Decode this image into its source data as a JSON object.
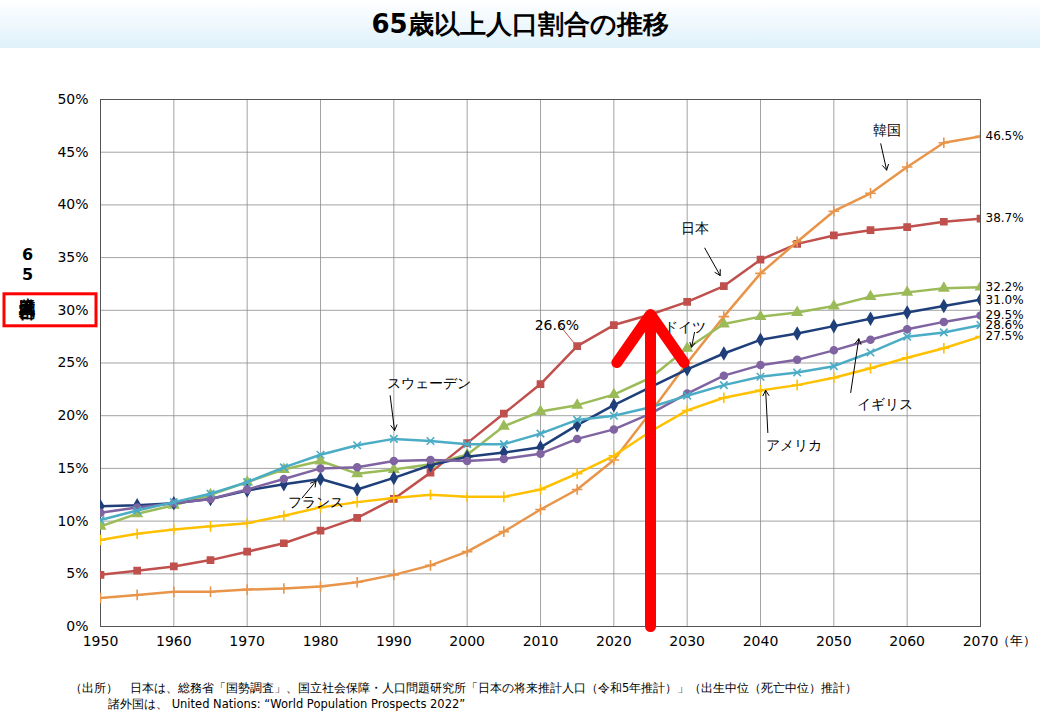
{
  "chart_data": {
    "type": "line",
    "title": "65歳以上人口割合の推移",
    "y_label": "65歳以上人口割合",
    "x_label": "（年）",
    "x": [
      1950,
      1955,
      1960,
      1965,
      1970,
      1975,
      1980,
      1985,
      1990,
      1995,
      2000,
      2005,
      2010,
      2015,
      2020,
      2025,
      2030,
      2035,
      2040,
      2045,
      2050,
      2055,
      2060,
      2065,
      2070
    ],
    "series": [
      {
        "name": "日本",
        "color": "#c0504d",
        "marker": "square",
        "values": [
          4.9,
          5.3,
          5.7,
          6.3,
          7.1,
          7.9,
          9.1,
          10.3,
          12.1,
          14.6,
          17.4,
          20.2,
          23.0,
          26.6,
          28.6,
          29.6,
          30.8,
          32.3,
          34.8,
          36.3,
          37.1,
          37.6,
          37.9,
          38.4,
          38.7
        ],
        "value_labels": [
          null,
          null,
          null,
          null,
          null,
          null,
          null,
          null,
          null,
          null,
          null,
          null,
          null,
          null,
          null,
          null,
          null,
          null,
          null,
          null,
          null,
          null,
          null,
          null,
          "38.7%"
        ]
      },
      {
        "name": "韓国",
        "color": "#e8954a",
        "marker": "plus",
        "values": [
          2.7,
          3.0,
          3.3,
          3.3,
          3.5,
          3.6,
          3.8,
          4.2,
          4.9,
          5.8,
          7.1,
          9.0,
          11.1,
          13.0,
          15.8,
          20.3,
          25.0,
          29.4,
          33.5,
          36.5,
          39.4,
          41.1,
          43.6,
          45.9,
          46.5
        ],
        "value_labels": [
          null,
          null,
          null,
          null,
          null,
          null,
          null,
          null,
          null,
          null,
          null,
          null,
          null,
          null,
          null,
          null,
          null,
          null,
          null,
          null,
          null,
          null,
          null,
          null,
          "46.5%"
        ]
      },
      {
        "name": "ドイツ",
        "color": "#9bbb59",
        "marker": "triangle",
        "values": [
          9.5,
          10.7,
          11.5,
          12.5,
          13.7,
          14.9,
          15.7,
          14.5,
          14.9,
          15.4,
          16.3,
          19.0,
          20.4,
          21.0,
          22.0,
          23.6,
          26.4,
          28.7,
          29.4,
          29.8,
          30.4,
          31.3,
          31.7,
          32.1,
          32.2
        ],
        "value_labels": [
          null,
          null,
          null,
          null,
          null,
          null,
          null,
          null,
          null,
          null,
          null,
          null,
          null,
          null,
          null,
          null,
          null,
          null,
          null,
          null,
          null,
          null,
          null,
          null,
          "32.2%"
        ]
      },
      {
        "name": "フランス",
        "color": "#1f3f7a",
        "marker": "diamond",
        "values": [
          11.4,
          11.5,
          11.7,
          12.1,
          12.9,
          13.5,
          14.0,
          13.0,
          14.1,
          15.3,
          16.1,
          16.5,
          17.0,
          19.1,
          21.0,
          22.7,
          24.4,
          25.9,
          27.2,
          27.8,
          28.5,
          29.2,
          29.8,
          30.4,
          31.0
        ],
        "value_labels": [
          null,
          null,
          null,
          null,
          null,
          null,
          null,
          null,
          null,
          null,
          null,
          null,
          null,
          null,
          null,
          null,
          null,
          null,
          null,
          null,
          null,
          null,
          null,
          null,
          "31.0%"
        ]
      },
      {
        "name": "イギリス",
        "color": "#8064a2",
        "marker": "circle",
        "values": [
          10.8,
          11.3,
          11.7,
          12.1,
          13.0,
          14.0,
          15.0,
          15.1,
          15.7,
          15.8,
          15.7,
          15.9,
          16.4,
          17.8,
          18.7,
          20.2,
          22.1,
          23.8,
          24.8,
          25.3,
          26.2,
          27.2,
          28.2,
          28.9,
          29.5
        ],
        "value_labels": [
          null,
          null,
          null,
          null,
          null,
          null,
          null,
          null,
          null,
          null,
          null,
          null,
          null,
          null,
          null,
          null,
          null,
          null,
          null,
          null,
          null,
          null,
          null,
          null,
          "29.5%"
        ]
      },
      {
        "name": "スウェーデン",
        "color": "#4bacc6",
        "marker": "times",
        "values": [
          10.1,
          11.0,
          11.8,
          12.6,
          13.7,
          15.1,
          16.3,
          17.2,
          17.8,
          17.6,
          17.3,
          17.3,
          18.3,
          19.6,
          20.0,
          20.8,
          21.9,
          22.9,
          23.7,
          24.1,
          24.7,
          26.0,
          27.5,
          27.9,
          28.6
        ],
        "value_labels": [
          null,
          null,
          null,
          null,
          null,
          null,
          null,
          null,
          null,
          null,
          null,
          null,
          null,
          null,
          null,
          null,
          null,
          null,
          null,
          null,
          null,
          null,
          null,
          null,
          "28.6%"
        ]
      },
      {
        "name": "アメリカ",
        "color": "#ffc000",
        "marker": "plus",
        "values": [
          8.2,
          8.8,
          9.2,
          9.5,
          9.8,
          10.5,
          11.3,
          11.8,
          12.2,
          12.5,
          12.3,
          12.3,
          13.0,
          14.5,
          16.2,
          18.5,
          20.5,
          21.7,
          22.4,
          22.9,
          23.6,
          24.5,
          25.5,
          26.4,
          27.5
        ],
        "value_labels": [
          null,
          null,
          null,
          null,
          null,
          null,
          null,
          null,
          null,
          null,
          null,
          null,
          null,
          null,
          null,
          null,
          null,
          null,
          null,
          null,
          null,
          null,
          null,
          null,
          "27.5%"
        ]
      }
    ],
    "xlim": [
      1950,
      2070
    ],
    "xticks": [
      1950,
      1960,
      1970,
      1980,
      1990,
      2000,
      2010,
      2020,
      2030,
      2040,
      2050,
      2060,
      2070
    ],
    "ylim": [
      0,
      50
    ],
    "yticks": [
      {
        "value": 0,
        "label": "0%"
      },
      {
        "value": 5,
        "label": "5%"
      },
      {
        "value": 10,
        "label": "10%"
      },
      {
        "value": 15,
        "label": "15%"
      },
      {
        "value": 20,
        "label": "20%"
      },
      {
        "value": 25,
        "label": "25%"
      },
      {
        "value": 30,
        "label": "30%"
      },
      {
        "value": 35,
        "label": "35%"
      },
      {
        "value": 40,
        "label": "40%"
      },
      {
        "value": 45,
        "label": "45%"
      },
      {
        "value": 50,
        "label": "50%"
      }
    ],
    "grid": true,
    "data_labels": true,
    "annotations": [
      {
        "text": "韓国",
        "x": 2055.3,
        "y": 47.1,
        "arrow_from": [
          2056.4,
          45.8
        ],
        "arrow_to": [
          2057.2,
          43.3
        ],
        "arrow": true
      },
      {
        "text": "日本",
        "x": 2029.1,
        "y": 37.8,
        "arrow_from": [
          2032.4,
          35.9
        ],
        "arrow_to": [
          2034.5,
          33.3
        ],
        "arrow": true
      },
      {
        "text": "26.6%",
        "x": 2009.2,
        "y": 28.6,
        "arrow_from": [
          2012.6,
          28.6
        ],
        "arrow_to": [
          2014.8,
          26.7
        ],
        "arrow": false,
        "color": "#c0504d"
      },
      {
        "text": "ドイツ",
        "x": 2026.8,
        "y": 28.4,
        "arrow_from": [
          2031.0,
          27.9
        ],
        "arrow_to": [
          2030.6,
          26.5
        ],
        "arrow": true
      },
      {
        "text": "スウェーデン",
        "x": 1989.1,
        "y": 23.1,
        "arrow_from": [
          1989.5,
          21.9
        ],
        "arrow_to": [
          1990.1,
          18.6
        ],
        "arrow": true
      },
      {
        "text": "フランス",
        "x": 1975.6,
        "y": 11.8,
        "arrow_from": [
          1977.5,
          12.2
        ],
        "arrow_to": [
          1979.4,
          13.8
        ],
        "arrow": true
      },
      {
        "text": "イギリス",
        "x": 2053.2,
        "y": 21.1,
        "arrow_from": [
          2052.3,
          22.2
        ],
        "arrow_to": [
          2053.4,
          27.3
        ],
        "arrow": true
      },
      {
        "text": "アメリカ",
        "x": 2040.7,
        "y": 17.2,
        "arrow_from": [
          2041.0,
          18.4
        ],
        "arrow_to": [
          2040.7,
          22.4
        ],
        "arrow": true
      }
    ],
    "highlight_arrow": {
      "x": 2025,
      "y1": 0,
      "y2": 29.6,
      "color": "#ff0000"
    },
    "highlight_ytick": {
      "value": 30,
      "color": "#ff0000"
    },
    "notes": [
      "（出所）　日本は、総務省「国勢調査」、国立社会保障・人口問題研究所「日本の将来推計人口（令和5年推計）」（出生中位（死亡中位）推計）",
      "諸外国は、 United Nations: “World Population Prospects 2022”"
    ]
  }
}
